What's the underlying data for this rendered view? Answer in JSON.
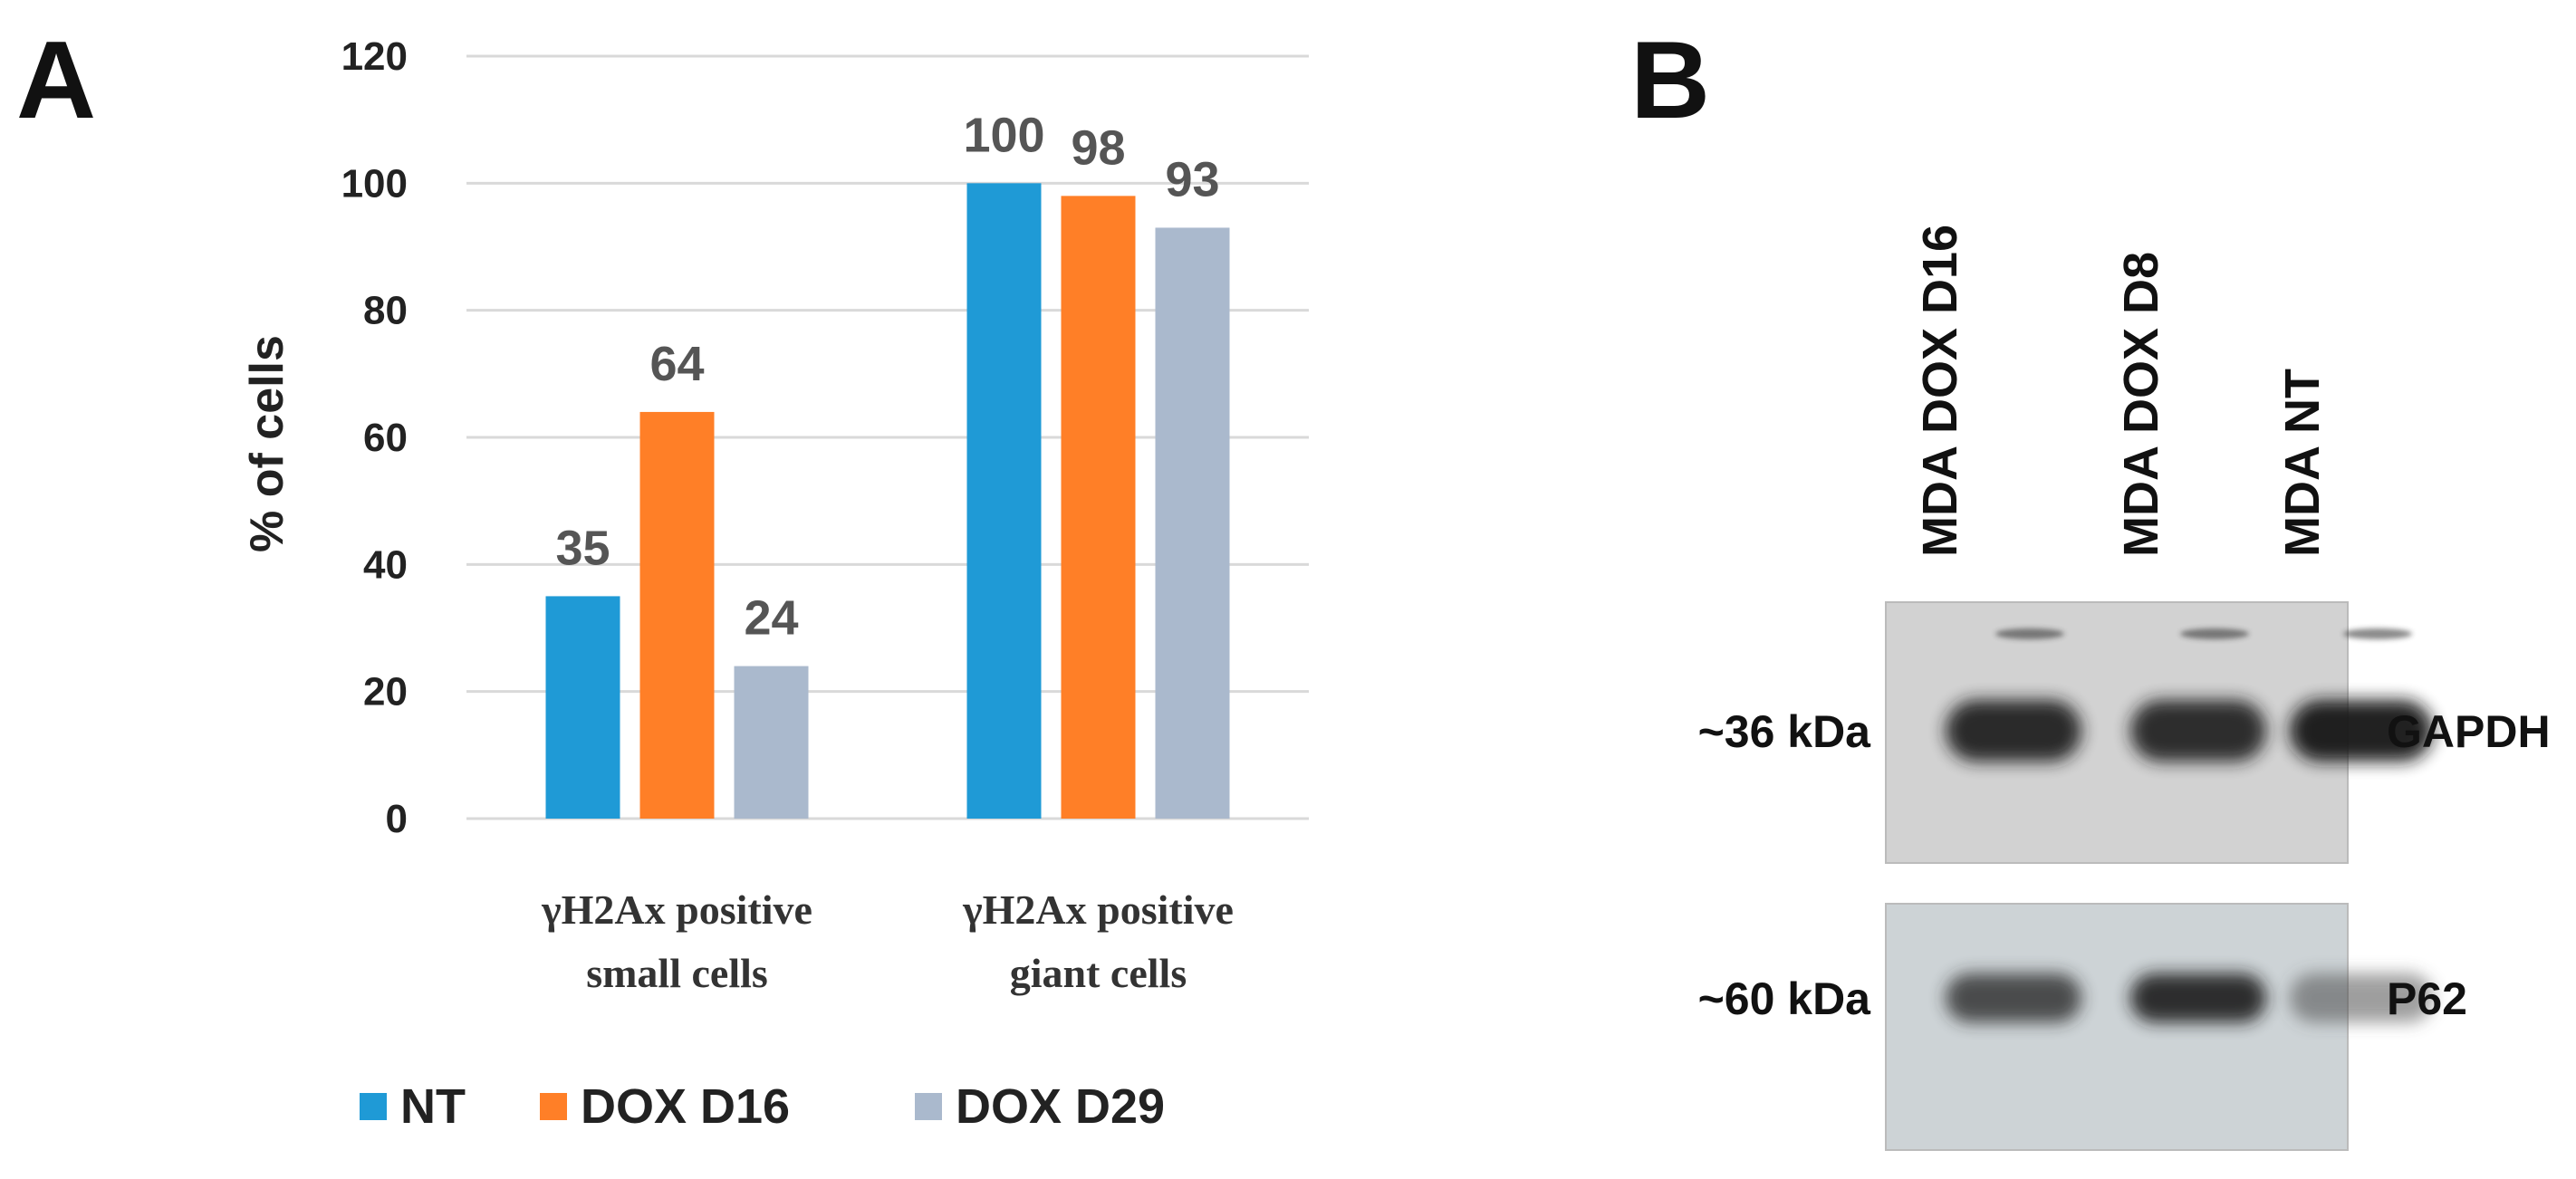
{
  "panels": {
    "a_label": "A",
    "b_label": "B"
  },
  "chart_data": {
    "type": "bar",
    "title": "",
    "ylabel": "% of cells",
    "xlabel": "",
    "ylim": [
      0,
      120
    ],
    "yticks": [
      0,
      20,
      40,
      60,
      80,
      100,
      120
    ],
    "grid": true,
    "legend_position": "bottom",
    "categories": [
      [
        "γH2Ax positive",
        "small cells"
      ],
      [
        "γH2Ax positive",
        "giant cells"
      ]
    ],
    "series": [
      {
        "name": "NT",
        "color": "#1f9ad6",
        "values": [
          35,
          100
        ]
      },
      {
        "name": "DOX D16",
        "color": "#ff7f27",
        "values": [
          64,
          98
        ]
      },
      {
        "name": "DOX D29",
        "color": "#aab9cd",
        "values": [
          24,
          93
        ]
      }
    ]
  },
  "blot": {
    "lanes": [
      "MDA DOX D16",
      "MDA DOX D8",
      "MDA NT"
    ],
    "rows": [
      {
        "size": "~36 kDa",
        "protein": "GAPDH",
        "intensity": [
          0.92,
          0.9,
          0.95
        ]
      },
      {
        "size": "~60 kDa",
        "protein": "P62",
        "intensity": [
          0.78,
          0.9,
          0.5
        ]
      }
    ]
  }
}
